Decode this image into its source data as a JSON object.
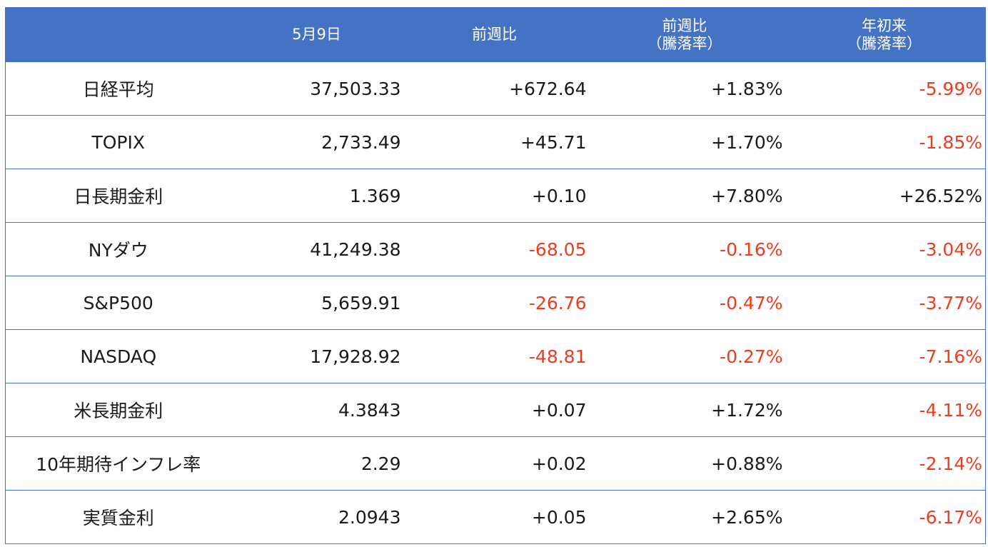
{
  "header": {
    "col0": "",
    "col1": "5月9日",
    "col2": "前週比",
    "col3_line1": "前週比",
    "col3_line2": "（騰落率）",
    "col4_line1": "年初来",
    "col4_line2": "（騰落率）"
  },
  "colors": {
    "header_bg": "#4472c4",
    "negative": "#f03c1e",
    "text": "#1a1a1a"
  },
  "rows": [
    {
      "name": "日経平均",
      "value": "37,503.33",
      "weekly_change": "+672.64",
      "weekly_pct": "+1.83%",
      "ytd_pct": "-5.99%"
    },
    {
      "name": "TOPIX",
      "value": "2,733.49",
      "weekly_change": "+45.71",
      "weekly_pct": "+1.70%",
      "ytd_pct": "-1.85%"
    },
    {
      "name": "日長期金利",
      "value": "1.369",
      "weekly_change": "+0.10",
      "weekly_pct": "+7.80%",
      "ytd_pct": "+26.52%"
    },
    {
      "name": "NYダウ",
      "value": "41,249.38",
      "weekly_change": "-68.05",
      "weekly_pct": "-0.16%",
      "ytd_pct": "-3.04%"
    },
    {
      "name": "S&P500",
      "value": "5,659.91",
      "weekly_change": "-26.76",
      "weekly_pct": "-0.47%",
      "ytd_pct": "-3.77%"
    },
    {
      "name": "NASDAQ",
      "value": "17,928.92",
      "weekly_change": "-48.81",
      "weekly_pct": "-0.27%",
      "ytd_pct": "-7.16%"
    },
    {
      "name": "米長期金利",
      "value": "4.3843",
      "weekly_change": "+0.07",
      "weekly_pct": "+1.72%",
      "ytd_pct": "-4.11%"
    },
    {
      "name": "10年期待インフレ率",
      "value": "2.29",
      "weekly_change": "+0.02",
      "weekly_pct": "+0.88%",
      "ytd_pct": "-2.14%"
    },
    {
      "name": "実質金利",
      "value": "2.0943",
      "weekly_change": "+0.05",
      "weekly_pct": "+2.65%",
      "ytd_pct": "-6.17%"
    }
  ]
}
